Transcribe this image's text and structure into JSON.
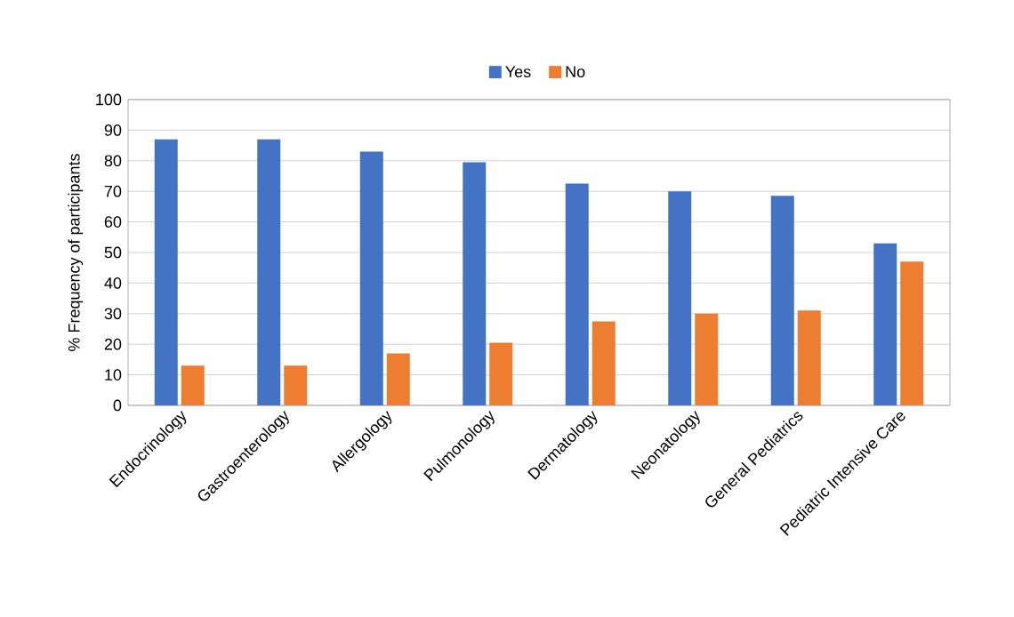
{
  "chart_data": {
    "type": "bar",
    "ylabel": "% Frequency of participants",
    "categories": [
      "Endocrinology",
      "Gastroenterology",
      "Allergology",
      "Pulmonology",
      "Dermatology",
      "Neonatology",
      "General Pediatrics",
      "Pediatric Intensive Care"
    ],
    "series": [
      {
        "name": "Yes",
        "color": "#4472c4",
        "values": [
          87,
          87,
          83,
          79.5,
          72.5,
          70,
          68.5,
          53
        ]
      },
      {
        "name": "No",
        "color": "#ed7d31",
        "values": [
          13,
          13,
          17,
          20.5,
          27.5,
          30,
          31,
          47
        ]
      }
    ],
    "ylim": [
      0,
      100
    ],
    "yticks": [
      0,
      10,
      20,
      30,
      40,
      50,
      60,
      70,
      80,
      90,
      100
    ],
    "grid": "y",
    "legend": "top"
  }
}
